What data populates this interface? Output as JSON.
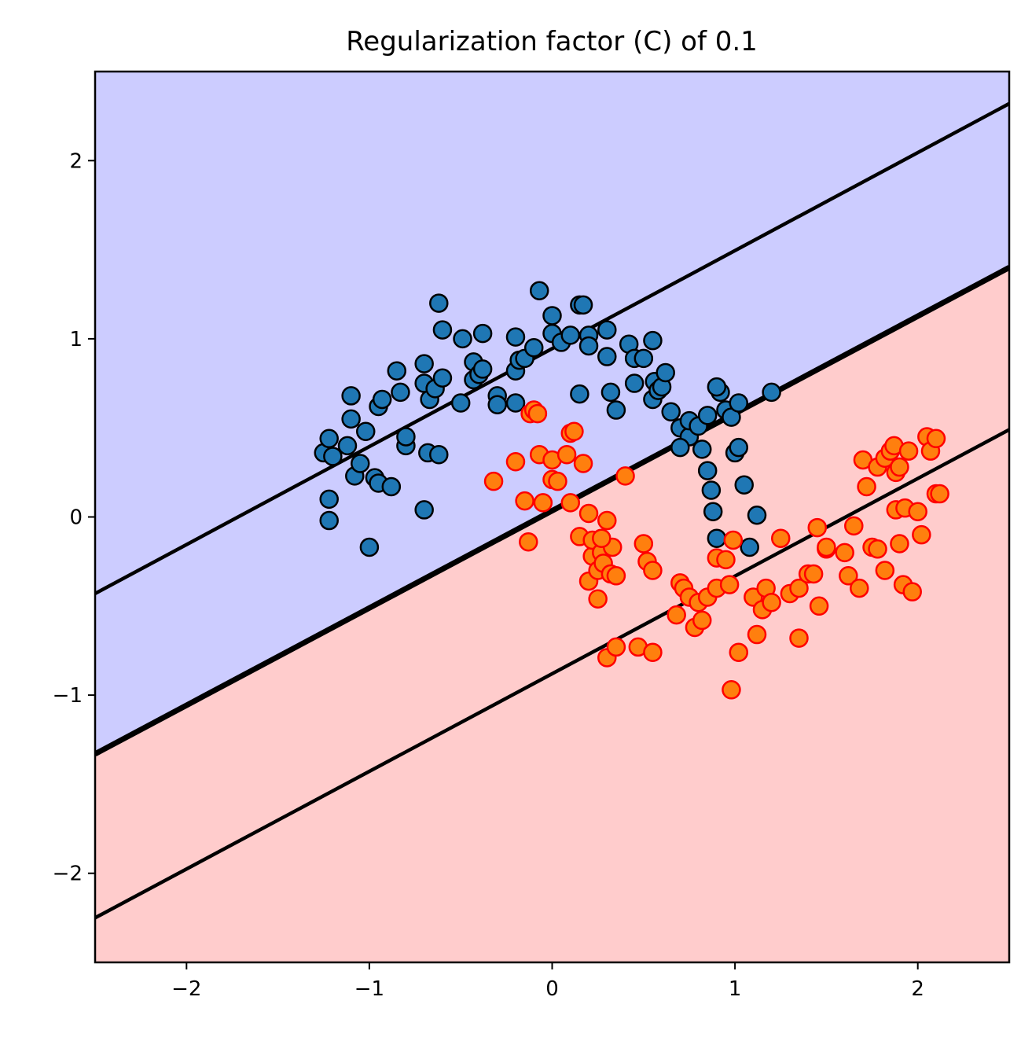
{
  "chart_data": {
    "type": "scatter",
    "title": "Regularization factor (C) of 0.1",
    "xlabel": "",
    "ylabel": "",
    "xlim": [
      -2.5,
      2.5
    ],
    "ylim": [
      -2.5,
      2.5
    ],
    "xticks": [
      -2,
      -1,
      0,
      1,
      2
    ],
    "yticks": [
      2,
      1,
      0,
      -1,
      -2
    ],
    "xtick_labels": [
      "−2",
      "−1",
      "0",
      "1",
      "2"
    ],
    "ytick_labels": [
      "2",
      "1",
      "0",
      "−1",
      "−2"
    ],
    "grid": false,
    "legend": "none",
    "colors": {
      "region_class_0": "#ccccff",
      "region_class_1": "#ffcccc",
      "class_0_fill": "#1f77b4",
      "class_0_edge": "#000000",
      "class_1_fill": "#ff7f0e",
      "class_1_edge": "#ff0000",
      "boundary": "#000000"
    },
    "decision_lines": [
      {
        "name": "margin-upper",
        "x": [
          -2.5,
          2.5
        ],
        "y": [
          -0.43,
          2.32
        ]
      },
      {
        "name": "decision-boundary",
        "x": [
          -2.5,
          2.5
        ],
        "y": [
          -1.33,
          1.4
        ]
      },
      {
        "name": "margin-lower",
        "x": [
          -2.5,
          2.5
        ],
        "y": [
          -2.25,
          0.49
        ]
      }
    ],
    "series": [
      {
        "points": [
          [
            -1.25,
            0.36
          ],
          [
            -1.22,
            0.44
          ],
          [
            -1.2,
            0.34
          ],
          [
            -1.22,
            0.1
          ],
          [
            -1.22,
            -0.02
          ],
          [
            -1.12,
            0.4
          ],
          [
            -1.1,
            0.55
          ],
          [
            -1.1,
            0.68
          ],
          [
            -1.08,
            0.23
          ],
          [
            -1.05,
            0.3
          ],
          [
            -1.02,
            0.48
          ],
          [
            -1.0,
            -0.17
          ],
          [
            -0.97,
            0.22
          ],
          [
            -0.95,
            0.19
          ],
          [
            -0.95,
            0.62
          ],
          [
            -0.93,
            0.66
          ],
          [
            -0.88,
            0.17
          ],
          [
            -0.85,
            0.82
          ],
          [
            -0.83,
            0.7
          ],
          [
            -0.8,
            0.4
          ],
          [
            -0.8,
            0.45
          ],
          [
            -0.7,
            0.04
          ],
          [
            -0.7,
            0.86
          ],
          [
            -0.7,
            0.75
          ],
          [
            -0.68,
            0.36
          ],
          [
            -0.67,
            0.66
          ],
          [
            -0.64,
            0.72
          ],
          [
            -0.62,
            0.35
          ],
          [
            -0.6,
            0.78
          ],
          [
            -0.6,
            1.05
          ],
          [
            -0.62,
            1.2
          ],
          [
            -0.5,
            0.64
          ],
          [
            -0.49,
            1.0
          ],
          [
            -0.43,
            0.87
          ],
          [
            -0.43,
            0.77
          ],
          [
            -0.4,
            0.8
          ],
          [
            -0.38,
            0.83
          ],
          [
            -0.38,
            1.03
          ],
          [
            -0.3,
            0.68
          ],
          [
            -0.3,
            0.63
          ],
          [
            -0.2,
            0.64
          ],
          [
            -0.2,
            0.82
          ],
          [
            -0.2,
            1.01
          ],
          [
            -0.18,
            0.88
          ],
          [
            -0.15,
            0.89
          ],
          [
            -0.1,
            0.95
          ],
          [
            -0.07,
            1.27
          ],
          [
            0.0,
            1.13
          ],
          [
            0.0,
            1.03
          ],
          [
            0.05,
            0.98
          ],
          [
            0.1,
            1.02
          ],
          [
            0.15,
            0.69
          ],
          [
            0.15,
            1.19
          ],
          [
            0.17,
            1.19
          ],
          [
            0.2,
            1.02
          ],
          [
            0.2,
            0.96
          ],
          [
            0.3,
            1.05
          ],
          [
            0.3,
            0.9
          ],
          [
            0.32,
            0.7
          ],
          [
            0.35,
            0.6
          ],
          [
            0.42,
            0.97
          ],
          [
            0.45,
            0.75
          ],
          [
            0.45,
            0.89
          ],
          [
            0.5,
            0.89
          ],
          [
            0.55,
            0.66
          ],
          [
            0.55,
            0.99
          ],
          [
            0.56,
            0.76
          ],
          [
            0.58,
            0.71
          ],
          [
            0.6,
            0.73
          ],
          [
            0.62,
            0.81
          ],
          [
            0.65,
            0.59
          ],
          [
            0.7,
            0.5
          ],
          [
            0.75,
            0.45
          ],
          [
            0.75,
            0.54
          ],
          [
            0.8,
            0.51
          ],
          [
            0.82,
            0.38
          ],
          [
            0.85,
            0.26
          ],
          [
            0.87,
            0.15
          ],
          [
            0.88,
            0.03
          ],
          [
            0.9,
            -0.12
          ],
          [
            0.92,
            0.7
          ],
          [
            0.95,
            0.6
          ],
          [
            0.98,
            0.56
          ],
          [
            1.0,
            0.36
          ],
          [
            1.02,
            0.39
          ],
          [
            1.02,
            0.64
          ],
          [
            1.05,
            0.18
          ],
          [
            1.08,
            -0.17
          ],
          [
            1.12,
            0.01
          ],
          [
            1.2,
            0.7
          ],
          [
            0.85,
            0.57
          ],
          [
            0.9,
            0.73
          ],
          [
            0.7,
            0.39
          ]
        ]
      },
      {
        "points": [
          [
            -0.32,
            0.2
          ],
          [
            -0.2,
            0.31
          ],
          [
            -0.15,
            0.09
          ],
          [
            -0.13,
            -0.14
          ],
          [
            -0.12,
            0.58
          ],
          [
            -0.1,
            0.6
          ],
          [
            -0.08,
            0.58
          ],
          [
            -0.07,
            0.35
          ],
          [
            -0.05,
            0.08
          ],
          [
            0.0,
            0.32
          ],
          [
            0.0,
            0.21
          ],
          [
            0.03,
            0.2
          ],
          [
            0.08,
            0.35
          ],
          [
            0.1,
            0.08
          ],
          [
            0.1,
            0.47
          ],
          [
            0.12,
            0.48
          ],
          [
            0.15,
            -0.11
          ],
          [
            0.17,
            0.3
          ],
          [
            0.2,
            0.02
          ],
          [
            0.2,
            -0.36
          ],
          [
            0.22,
            -0.22
          ],
          [
            0.22,
            -0.13
          ],
          [
            0.25,
            -0.46
          ],
          [
            0.25,
            -0.3
          ],
          [
            0.27,
            -0.2
          ],
          [
            0.28,
            -0.26
          ],
          [
            0.3,
            -0.02
          ],
          [
            0.3,
            -0.79
          ],
          [
            0.32,
            -0.32
          ],
          [
            0.33,
            -0.17
          ],
          [
            0.35,
            -0.33
          ],
          [
            0.35,
            -0.73
          ],
          [
            0.4,
            0.23
          ],
          [
            0.47,
            -0.73
          ],
          [
            0.5,
            -0.15
          ],
          [
            0.52,
            -0.25
          ],
          [
            0.55,
            -0.76
          ],
          [
            0.55,
            -0.3
          ],
          [
            0.68,
            -0.55
          ],
          [
            0.7,
            -0.37
          ],
          [
            0.72,
            -0.4
          ],
          [
            0.75,
            -0.45
          ],
          [
            0.78,
            -0.62
          ],
          [
            0.8,
            -0.48
          ],
          [
            0.82,
            -0.58
          ],
          [
            0.85,
            -0.45
          ],
          [
            0.9,
            -0.4
          ],
          [
            0.9,
            -0.23
          ],
          [
            0.95,
            -0.24
          ],
          [
            0.97,
            -0.38
          ],
          [
            0.98,
            -0.97
          ],
          [
            0.99,
            -0.13
          ],
          [
            1.02,
            -0.76
          ],
          [
            1.1,
            -0.45
          ],
          [
            1.12,
            -0.66
          ],
          [
            1.15,
            -0.52
          ],
          [
            1.17,
            -0.4
          ],
          [
            1.2,
            -0.48
          ],
          [
            1.25,
            -0.12
          ],
          [
            1.3,
            -0.43
          ],
          [
            1.35,
            -0.4
          ],
          [
            1.35,
            -0.68
          ],
          [
            1.4,
            -0.32
          ],
          [
            1.43,
            -0.32
          ],
          [
            1.45,
            -0.06
          ],
          [
            1.46,
            -0.5
          ],
          [
            1.5,
            -0.18
          ],
          [
            1.6,
            -0.2
          ],
          [
            1.62,
            -0.33
          ],
          [
            1.65,
            -0.05
          ],
          [
            1.68,
            -0.4
          ],
          [
            1.7,
            0.32
          ],
          [
            1.72,
            0.17
          ],
          [
            1.75,
            -0.17
          ],
          [
            1.78,
            -0.18
          ],
          [
            1.78,
            0.28
          ],
          [
            1.82,
            0.33
          ],
          [
            1.82,
            -0.3
          ],
          [
            1.85,
            0.37
          ],
          [
            1.87,
            0.4
          ],
          [
            1.88,
            0.25
          ],
          [
            1.88,
            0.04
          ],
          [
            1.9,
            -0.15
          ],
          [
            1.9,
            0.28
          ],
          [
            1.92,
            -0.38
          ],
          [
            1.93,
            0.05
          ],
          [
            1.95,
            0.37
          ],
          [
            1.97,
            -0.42
          ],
          [
            2.0,
            0.03
          ],
          [
            2.02,
            -0.1
          ],
          [
            2.05,
            0.45
          ],
          [
            2.07,
            0.37
          ],
          [
            2.1,
            0.44
          ],
          [
            2.1,
            0.13
          ],
          [
            2.12,
            0.13
          ],
          [
            1.5,
            -0.17
          ],
          [
            0.27,
            -0.12
          ]
        ]
      }
    ]
  }
}
